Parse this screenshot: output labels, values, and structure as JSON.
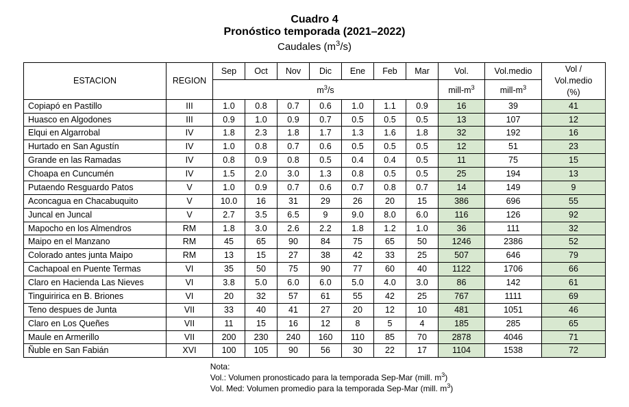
{
  "title": {
    "line1": "Cuadro 4",
    "line2": "Pronóstico temporada (2021–2022)",
    "line3_pre": "Caudales (m",
    "line3_sup": "3",
    "line3_post": "/s)"
  },
  "headers": {
    "estacion": "ESTACION",
    "region": "REGION",
    "months": [
      "Sep",
      "Oct",
      "Nov",
      "Dic",
      "Ene",
      "Feb",
      "Mar"
    ],
    "unit_pre": "m",
    "unit_sup": "3",
    "unit_post": "/s",
    "vol": "Vol.",
    "vol_unit_pre": "mill-m",
    "vol_unit_sup": "3",
    "volmed": "Vol.medio",
    "volmed_unit_pre": "mill-m",
    "volmed_unit_sup": "3",
    "ratio_l1": "Vol /",
    "ratio_l2": "Vol.medio",
    "ratio_l3": "(%)"
  },
  "rows": [
    {
      "est": "Copiapó en Pastillo",
      "reg": "III",
      "m": [
        "1.0",
        "0.8",
        "0.7",
        "0.6",
        "1.0",
        "1.1",
        "0.9"
      ],
      "vol": "16",
      "med": "39",
      "pct": "41"
    },
    {
      "est": "Huasco en Algodones",
      "reg": "III",
      "m": [
        "0.9",
        "1.0",
        "0.9",
        "0.7",
        "0.5",
        "0.5",
        "0.5"
      ],
      "vol": "13",
      "med": "107",
      "pct": "12"
    },
    {
      "est": "Elqui en Algarrobal",
      "reg": "IV",
      "m": [
        "1.8",
        "2.3",
        "1.8",
        "1.7",
        "1.3",
        "1.6",
        "1.8"
      ],
      "vol": "32",
      "med": "192",
      "pct": "16"
    },
    {
      "est": "Hurtado en San Agustín",
      "reg": "IV",
      "m": [
        "1.0",
        "0.8",
        "0.7",
        "0.6",
        "0.5",
        "0.5",
        "0.5"
      ],
      "vol": "12",
      "med": "51",
      "pct": "23"
    },
    {
      "est": "Grande en las Ramadas",
      "reg": "IV",
      "m": [
        "0.8",
        "0.9",
        "0.8",
        "0.5",
        "0.4",
        "0.4",
        "0.5"
      ],
      "vol": "11",
      "med": "75",
      "pct": "15"
    },
    {
      "est": "Choapa en Cuncumén",
      "reg": "IV",
      "m": [
        "1.5",
        "2.0",
        "3.0",
        "1.3",
        "0.8",
        "0.5",
        "0.5"
      ],
      "vol": "25",
      "med": "194",
      "pct": "13"
    },
    {
      "est": "Putaendo Resguardo Patos",
      "reg": "V",
      "m": [
        "1.0",
        "0.9",
        "0.7",
        "0.6",
        "0.7",
        "0.8",
        "0.7"
      ],
      "vol": "14",
      "med": "149",
      "pct": "9"
    },
    {
      "est": "Aconcagua en Chacabuquito",
      "reg": "V",
      "m": [
        "10.0",
        "16",
        "31",
        "29",
        "26",
        "20",
        "15"
      ],
      "vol": "386",
      "med": "696",
      "pct": "55"
    },
    {
      "est": "Juncal en Juncal",
      "reg": "V",
      "m": [
        "2.7",
        "3.5",
        "6.5",
        "9",
        "9.0",
        "8.0",
        "6.0"
      ],
      "vol": "116",
      "med": "126",
      "pct": "92"
    },
    {
      "est": "Mapocho en los Almendros",
      "reg": "RM",
      "m": [
        "1.8",
        "3.0",
        "2.6",
        "2.2",
        "1.8",
        "1.2",
        "1.0"
      ],
      "vol": "36",
      "med": "111",
      "pct": "32"
    },
    {
      "est": "Maipo en el Manzano",
      "reg": "RM",
      "m": [
        "45",
        "65",
        "90",
        "84",
        "75",
        "65",
        "50"
      ],
      "vol": "1246",
      "med": "2386",
      "pct": "52"
    },
    {
      "est": "Colorado antes junta Maipo",
      "reg": "RM",
      "m": [
        "13",
        "15",
        "27",
        "38",
        "42",
        "33",
        "25"
      ],
      "vol": "507",
      "med": "646",
      "pct": "79"
    },
    {
      "est": "Cachapoal en Puente Termas",
      "reg": "VI",
      "m": [
        "35",
        "50",
        "75",
        "90",
        "77",
        "60",
        "40"
      ],
      "vol": "1122",
      "med": "1706",
      "pct": "66"
    },
    {
      "est": "Claro en Hacienda Las Nieves",
      "reg": "VI",
      "m": [
        "3.8",
        "5.0",
        "6.0",
        "6.0",
        "5.0",
        "4.0",
        "3.0"
      ],
      "vol": "86",
      "med": "142",
      "pct": "61"
    },
    {
      "est": "Tinguiririca en B. Briones",
      "reg": "VI",
      "m": [
        "20",
        "32",
        "57",
        "61",
        "55",
        "42",
        "25"
      ],
      "vol": "767",
      "med": "1111",
      "pct": "69"
    },
    {
      "est": "Teno despues de Junta",
      "reg": "VII",
      "m": [
        "33",
        "40",
        "41",
        "27",
        "20",
        "12",
        "10"
      ],
      "vol": "481",
      "med": "1051",
      "pct": "46"
    },
    {
      "est": "Claro en Los Queñes",
      "reg": "VII",
      "m": [
        "11",
        "15",
        "16",
        "12",
        "8",
        "5",
        "4"
      ],
      "vol": "185",
      "med": "285",
      "pct": "65"
    },
    {
      "est": "Maule en Armerillo",
      "reg": "VII",
      "m": [
        "200",
        "230",
        "240",
        "160",
        "110",
        "85",
        "70"
      ],
      "vol": "2878",
      "med": "4046",
      "pct": "71"
    },
    {
      "est": "Ñuble en San Fabián",
      "reg": "XVI",
      "m": [
        "100",
        "105",
        "90",
        "56",
        "30",
        "22",
        "17"
      ],
      "vol": "1104",
      "med": "1538",
      "pct": "72"
    }
  ],
  "notes": {
    "title": "Nota:",
    "l1_pre": "Vol.: Volumen pronosticado para la temporada Sep-Mar (mill. m",
    "l1_sup": "3",
    "l1_post": ")",
    "l2_pre": "Vol. Med: Volumen promedio para la temporada Sep-Mar (mill. m",
    "l2_sup": "3",
    "l2_post": ")"
  },
  "style": {
    "highlight_color": "#d8e8d0",
    "background_color": "#ffffff",
    "border_color": "#000000",
    "header_fontsize": 12.5,
    "title_fontsize": 16
  }
}
